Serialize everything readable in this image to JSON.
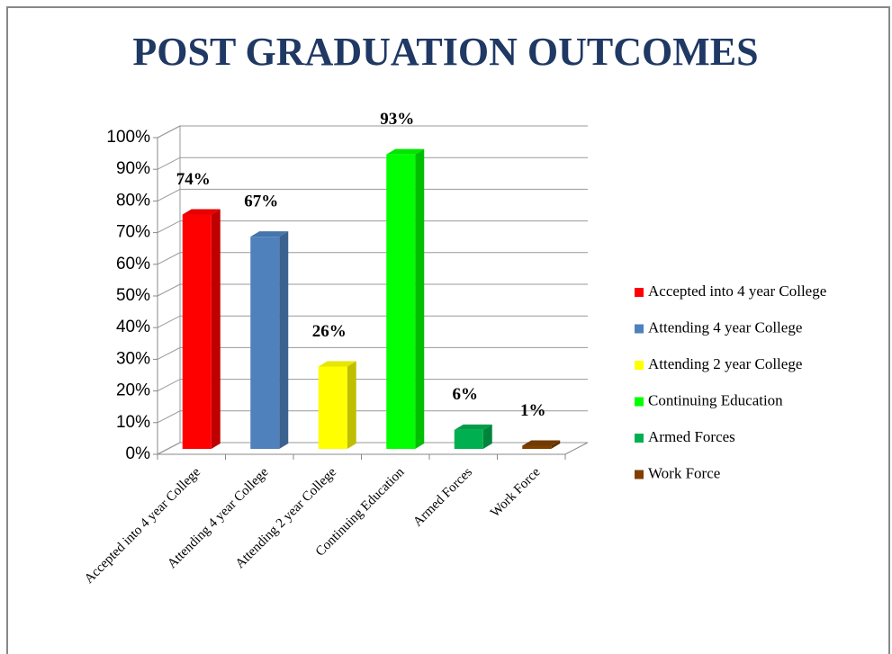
{
  "chart_data": {
    "type": "bar3d",
    "title": "POST GRADUATION OUTCOMES",
    "categories": [
      "Accepted into 4 year College",
      "Attending 4 year College",
      "Attending 2 year College",
      "Continuing Education",
      "Armed Forces",
      "Work Force"
    ],
    "values": [
      74,
      67,
      26,
      93,
      6,
      1
    ],
    "value_labels": [
      "74%",
      "67%",
      "26%",
      "93%",
      "6%",
      "1%"
    ],
    "colors": [
      "#ff0000",
      "#4f81bd",
      "#ffff00",
      "#00ff00",
      "#00b050",
      "#7f3f00"
    ],
    "ylim": [
      0,
      100
    ],
    "yticks": [
      {
        "value": 0,
        "label": "0%"
      },
      {
        "value": 10,
        "label": "10%"
      },
      {
        "value": 20,
        "label": "20%"
      },
      {
        "value": 30,
        "label": "30%"
      },
      {
        "value": 40,
        "label": "40%"
      },
      {
        "value": 50,
        "label": "50%"
      },
      {
        "value": 60,
        "label": "60%"
      },
      {
        "value": 70,
        "label": "70%"
      },
      {
        "value": 80,
        "label": "80%"
      },
      {
        "value": 90,
        "label": "90%"
      },
      {
        "value": 100,
        "label": "100%"
      }
    ],
    "grid": true,
    "legend": "right"
  }
}
